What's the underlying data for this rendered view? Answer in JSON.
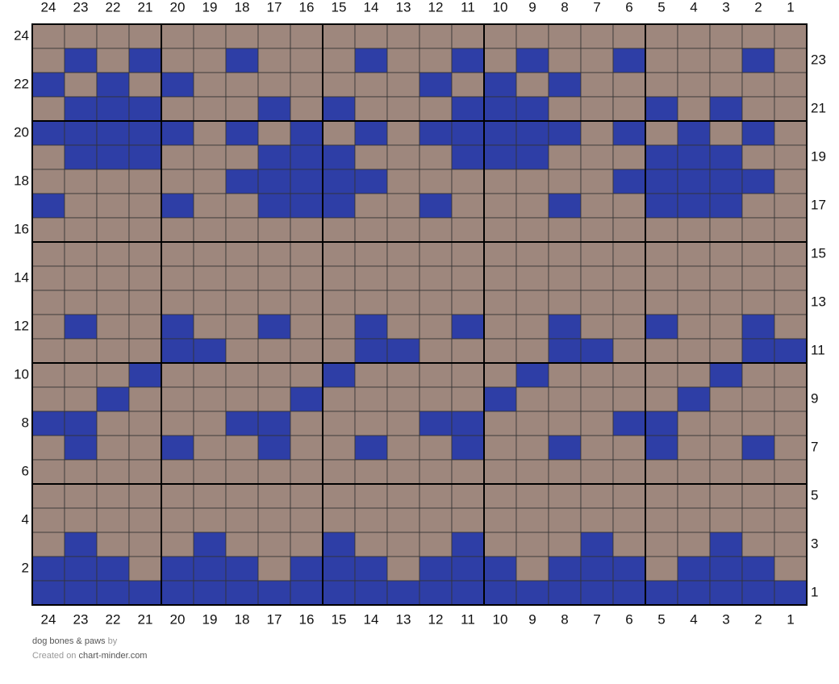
{
  "columns": [
    24,
    23,
    22,
    21,
    20,
    19,
    18,
    17,
    16,
    15,
    14,
    13,
    12,
    11,
    10,
    9,
    8,
    7,
    6,
    5,
    4,
    3,
    2,
    1
  ],
  "rows": [
    {
      "number": 24,
      "cells": "........................"
    },
    {
      "number": 23,
      "cells": ".B.B..B...B..B.B..B...B."
    },
    {
      "number": 22,
      "cells": "B.B.B.......B.B.B......."
    },
    {
      "number": 21,
      "cells": ".BBB...B.B...BBB...B.B.."
    },
    {
      "number": 20,
      "cells": "BBBBB.B.B.B.BBBBB.B.B.B."
    },
    {
      "number": 19,
      "cells": ".BBB...BBB...BBB...BBB.."
    },
    {
      "number": 18,
      "cells": "......BBBBB.......BBBBB."
    },
    {
      "number": 17,
      "cells": "B...B..BBB..B...B..BBB.."
    },
    {
      "number": 16,
      "cells": "........................"
    },
    {
      "number": 15,
      "cells": "........................"
    },
    {
      "number": 14,
      "cells": "........................"
    },
    {
      "number": 13,
      "cells": "........................"
    },
    {
      "number": 12,
      "cells": ".B..B..B..B..B..B..B..B."
    },
    {
      "number": 11,
      "cells": "....BB....BB....BB....BB"
    },
    {
      "number": 10,
      "cells": "...B.....B.....B.....B.."
    },
    {
      "number": 9,
      "cells": "..B.....B.....B.....B..."
    },
    {
      "number": 8,
      "cells": "BB....BB....BB....BB...."
    },
    {
      "number": 7,
      "cells": ".B..B..B..B..B..B..B..B."
    },
    {
      "number": 6,
      "cells": "........................"
    },
    {
      "number": 5,
      "cells": "........................"
    },
    {
      "number": 4,
      "cells": "........................"
    },
    {
      "number": 3,
      "cells": ".B...B...B...B...B...B.."
    },
    {
      "number": 2,
      "cells": "BBB.BBB.BBB.BBB.BBB.BBB."
    },
    {
      "number": 1,
      "cells": "BBBBBBBBBBBBBBBBBBBBBBBB"
    }
  ],
  "colors": {
    "B": "#2e3ea6",
    ".": "#9e877d"
  },
  "footer": {
    "title": "dog bones & paws",
    "by": "by",
    "created": "Created on",
    "site": "chart-minder.com"
  }
}
